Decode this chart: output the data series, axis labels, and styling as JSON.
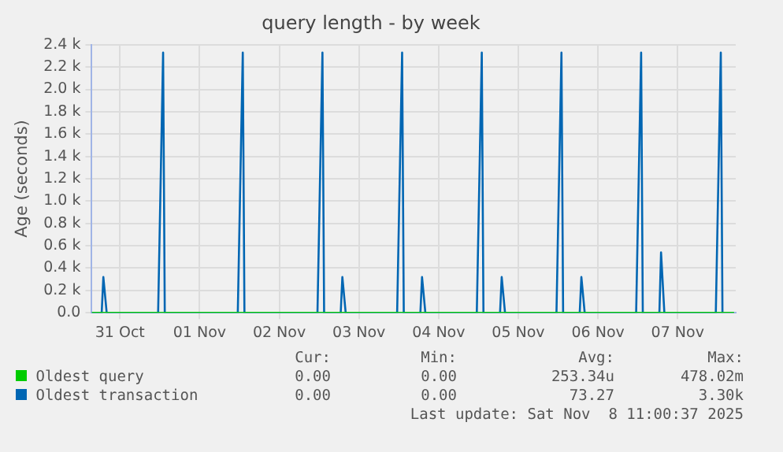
{
  "chart_data": {
    "type": "line",
    "title": "query length - by week",
    "ylabel": "Age (seconds)",
    "xlim": [
      "--10-31T03:30",
      "--11-08T05:30"
    ],
    "xticks": [
      {
        "value": "--10-31T12:00",
        "label": "31 Oct"
      },
      {
        "value": "--11-01T12:00",
        "label": "01 Nov"
      },
      {
        "value": "--11-02T12:00",
        "label": "02 Nov"
      },
      {
        "value": "--11-03T12:00",
        "label": "03 Nov"
      },
      {
        "value": "--11-04T12:00",
        "label": "04 Nov"
      },
      {
        "value": "--11-05T12:00",
        "label": "05 Nov"
      },
      {
        "value": "--11-06T12:00",
        "label": "06 Nov"
      },
      {
        "value": "--11-07T12:00",
        "label": "07 Nov"
      }
    ],
    "ylim": [
      0,
      2400
    ],
    "yticks": [
      {
        "value": 0,
        "label": "0.0"
      },
      {
        "value": 200,
        "label": "0.2 k"
      },
      {
        "value": 400,
        "label": "0.4 k"
      },
      {
        "value": 600,
        "label": "0.6 k"
      },
      {
        "value": 800,
        "label": "0.8 k"
      },
      {
        "value": 1000,
        "label": "1.0 k"
      },
      {
        "value": 1200,
        "label": "1.2 k"
      },
      {
        "value": 1400,
        "label": "1.4 k"
      },
      {
        "value": 1600,
        "label": "1.6 k"
      },
      {
        "value": 1800,
        "label": "1.8 k"
      },
      {
        "value": 2000,
        "label": "2.0 k"
      },
      {
        "value": 2200,
        "label": "2.2 k"
      },
      {
        "value": 2400,
        "label": "2.4 k"
      }
    ],
    "x": [
      "--10-31T03:30",
      "--10-31T06:30",
      "--10-31T07:00",
      "--10-31T08:00",
      "--10-31T23:30",
      "--11-01T01:00",
      "--11-01T01:30",
      "--11-01T23:30",
      "--11-02T01:00",
      "--11-02T01:30",
      "--11-02T23:30",
      "--11-03T01:00",
      "--11-03T01:30",
      "--11-03T06:30",
      "--11-03T07:00",
      "--11-03T08:00",
      "--11-03T23:30",
      "--11-04T01:00",
      "--11-04T01:30",
      "--11-04T06:30",
      "--11-04T07:00",
      "--11-04T08:00",
      "--11-04T23:30",
      "--11-05T01:00",
      "--11-05T01:30",
      "--11-05T06:30",
      "--11-05T07:00",
      "--11-05T08:00",
      "--11-05T23:30",
      "--11-06T01:00",
      "--11-06T01:30",
      "--11-06T06:30",
      "--11-06T07:00",
      "--11-06T08:00",
      "--11-06T23:30",
      "--11-07T01:00",
      "--11-07T01:30",
      "--11-07T06:30",
      "--11-07T07:00",
      "--11-07T08:00",
      "--11-07T23:30",
      "--11-08T01:00",
      "--11-08T01:30",
      "--11-08T05:00"
    ],
    "series": [
      {
        "name": "Oldest query",
        "color": "#00cc00",
        "values": [
          0,
          0,
          0,
          0,
          0,
          0,
          0,
          0,
          0,
          0,
          0,
          0,
          0,
          0,
          0,
          0,
          0,
          0,
          0,
          0,
          0,
          0,
          0,
          0,
          0,
          0,
          0,
          0,
          0,
          0,
          0,
          0,
          0,
          0,
          0,
          0,
          0,
          0,
          0,
          0,
          0,
          0,
          0,
          0
        ]
      },
      {
        "name": "Oldest transaction",
        "color": "#0066b3",
        "values": [
          0,
          0,
          320,
          0,
          0,
          2330,
          0,
          0,
          2330,
          0,
          0,
          2330,
          0,
          0,
          320,
          0,
          0,
          2330,
          0,
          0,
          320,
          0,
          0,
          2330,
          0,
          0,
          320,
          0,
          0,
          2330,
          0,
          0,
          320,
          0,
          0,
          2330,
          0,
          0,
          540,
          0,
          0,
          2330,
          0,
          null
        ]
      }
    ],
    "grid": true,
    "legend": "bottom",
    "marker": "none",
    "line_style": "solid",
    "annotations": [
      "Cur:",
      "Min:",
      "Avg:",
      "Max:",
      "0.00",
      "0.00",
      "253.34u",
      "478.02m",
      "0.00",
      "0.00",
      "73.27",
      "3.30k",
      "Last update: Sat Nov  8 11:00:37 2025"
    ]
  }
}
